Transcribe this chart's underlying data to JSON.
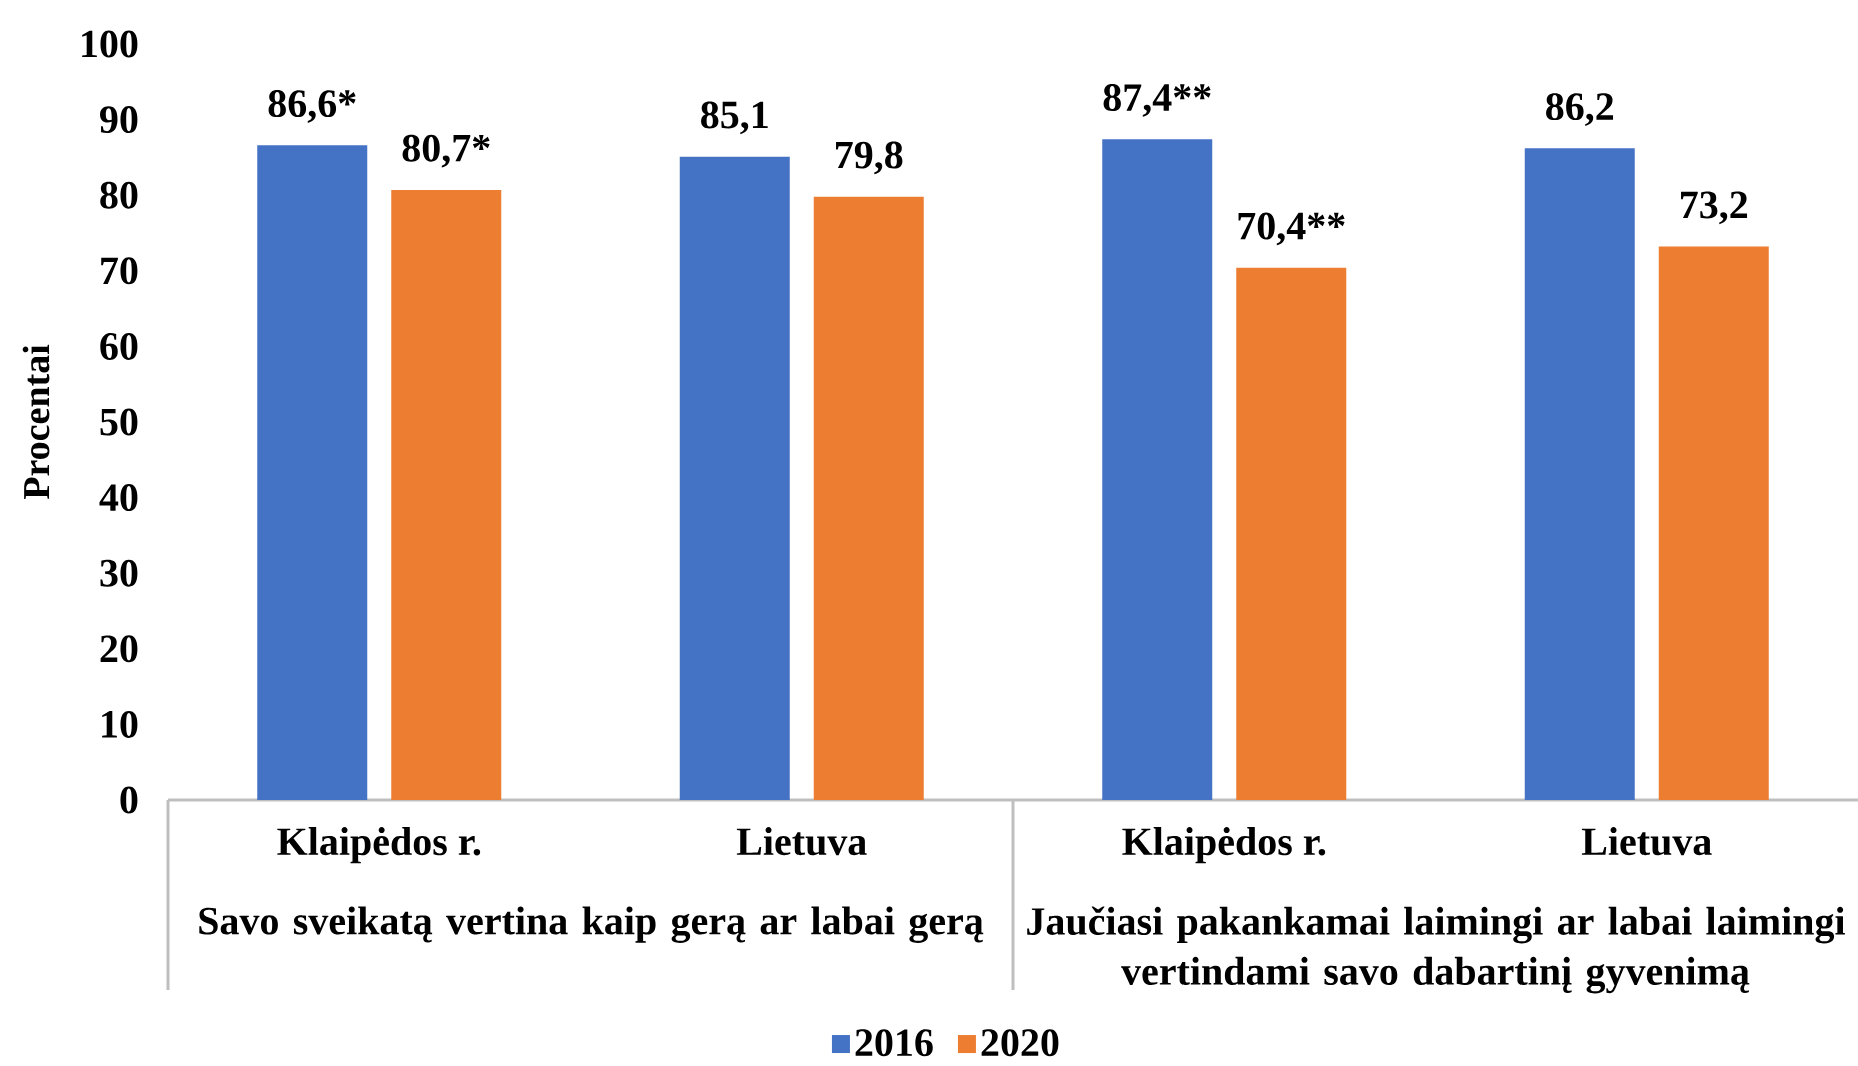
{
  "chart_data": {
    "type": "bar",
    "ylabel": "Procentai",
    "categories": [
      "Klaipėdos r.",
      "Lietuva",
      "Klaipėdos r.",
      "Lietuva"
    ],
    "series": [
      {
        "name": "2016",
        "color": "#4472c4",
        "values": [
          86.6,
          85.1,
          87.4,
          86.2
        ],
        "value_labels": [
          "86,6*",
          "85,1",
          "87,4**",
          "86,2"
        ]
      },
      {
        "name": "2020",
        "color": "#ed7d31",
        "values": [
          80.7,
          79.8,
          70.4,
          73.2
        ],
        "value_labels": [
          "80,7*",
          "79,8",
          "70,4**",
          "73,2"
        ]
      }
    ],
    "annotations": [
      "Savo sveikatą vertina kaip gerą ar labai gerą",
      "Jaučiasi pakankamai laimingi ar labai laimingi vertindami savo dabartinį gyvenimą"
    ],
    "ylim": [
      0,
      100
    ],
    "yticks": [
      0,
      10,
      20,
      30,
      40,
      50,
      60,
      70,
      80,
      90,
      100
    ],
    "legend": "bottom"
  }
}
